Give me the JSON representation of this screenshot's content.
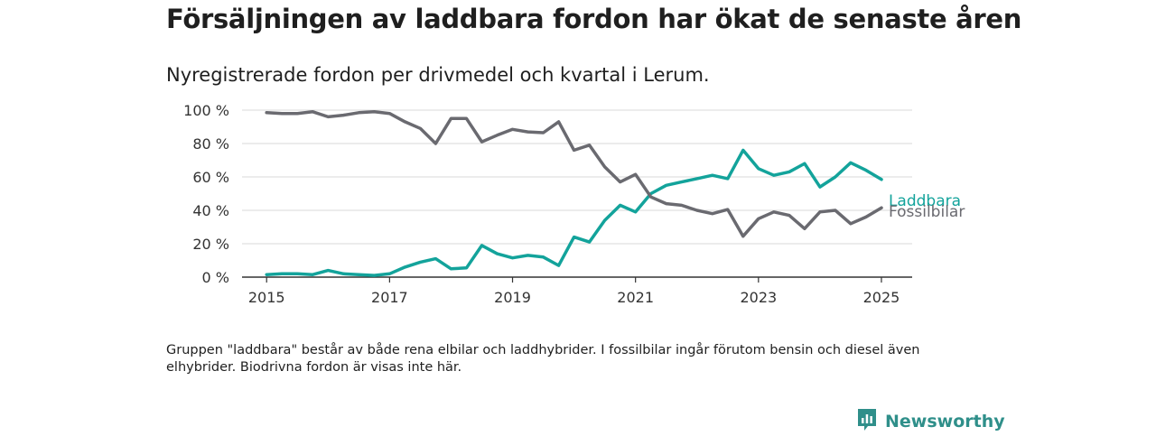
{
  "title": "Försäljningen av laddbara fordon har ökat de senaste åren",
  "subtitle": "Nyregistrerade fordon per drivmedel och kvartal i Lerum.",
  "note": "Gruppen \"laddbara\" består av både rena elbilar och laddhybrider. I fossilbilar ingår förutom bensin och diesel även elhybrider. Biodrivna fordon är visas inte här.",
  "brand": {
    "name": "Newsworthy",
    "icon": "newsworthy-logo-icon",
    "color": "#2f8f8a"
  },
  "chart_data": {
    "type": "line",
    "xlabel": "",
    "ylabel": "",
    "ylim": [
      0,
      100
    ],
    "y_ticks": [
      0,
      20,
      40,
      60,
      80,
      100
    ],
    "y_tick_labels": [
      "0 %",
      "20 %",
      "40 %",
      "60 %",
      "80 %",
      "100 %"
    ],
    "x_ticks": [
      2015,
      2017,
      2019,
      2021,
      2023,
      2025
    ],
    "x_tick_labels": [
      "2015",
      "2017",
      "2019",
      "2021",
      "2023",
      "2025"
    ],
    "xlim": [
      2014.6,
      2025.5
    ],
    "grid": true,
    "x": [
      2015.0,
      2015.25,
      2015.5,
      2015.75,
      2016.0,
      2016.25,
      2016.5,
      2016.75,
      2017.0,
      2017.25,
      2017.5,
      2017.75,
      2018.0,
      2018.25,
      2018.5,
      2018.75,
      2019.0,
      2019.25,
      2019.5,
      2019.75,
      2020.0,
      2020.25,
      2020.5,
      2020.75,
      2021.0,
      2021.25,
      2021.5,
      2021.75,
      2022.0,
      2022.25,
      2022.5,
      2022.75,
      2023.0,
      2023.25,
      2023.5,
      2023.75,
      2024.0,
      2024.25,
      2024.5,
      2024.75,
      2025.0
    ],
    "series": [
      {
        "name": "Laddbara",
        "color": "#13a39b",
        "values": [
          1.5,
          2,
          2,
          1.5,
          4,
          2,
          1.5,
          1,
          2,
          6,
          9,
          11,
          5,
          5.5,
          19,
          14,
          11.5,
          13,
          12,
          7,
          24,
          21,
          34,
          43,
          39,
          50,
          55,
          57,
          59,
          61,
          59,
          76,
          65,
          61,
          63,
          68,
          54,
          60,
          68.5,
          64,
          58.5
        ]
      },
      {
        "name": "Fossilbilar",
        "color": "#6a6a70",
        "values": [
          98.5,
          98,
          98,
          99,
          96,
          97,
          98.5,
          99,
          98,
          93,
          89,
          80,
          95,
          95,
          81,
          85,
          88.5,
          87,
          86.5,
          93,
          76,
          79,
          66,
          57,
          61.5,
          48,
          44,
          43,
          40,
          38,
          40.5,
          24.5,
          35,
          39,
          37,
          29,
          39,
          40,
          32,
          36,
          41.5
        ]
      }
    ]
  }
}
